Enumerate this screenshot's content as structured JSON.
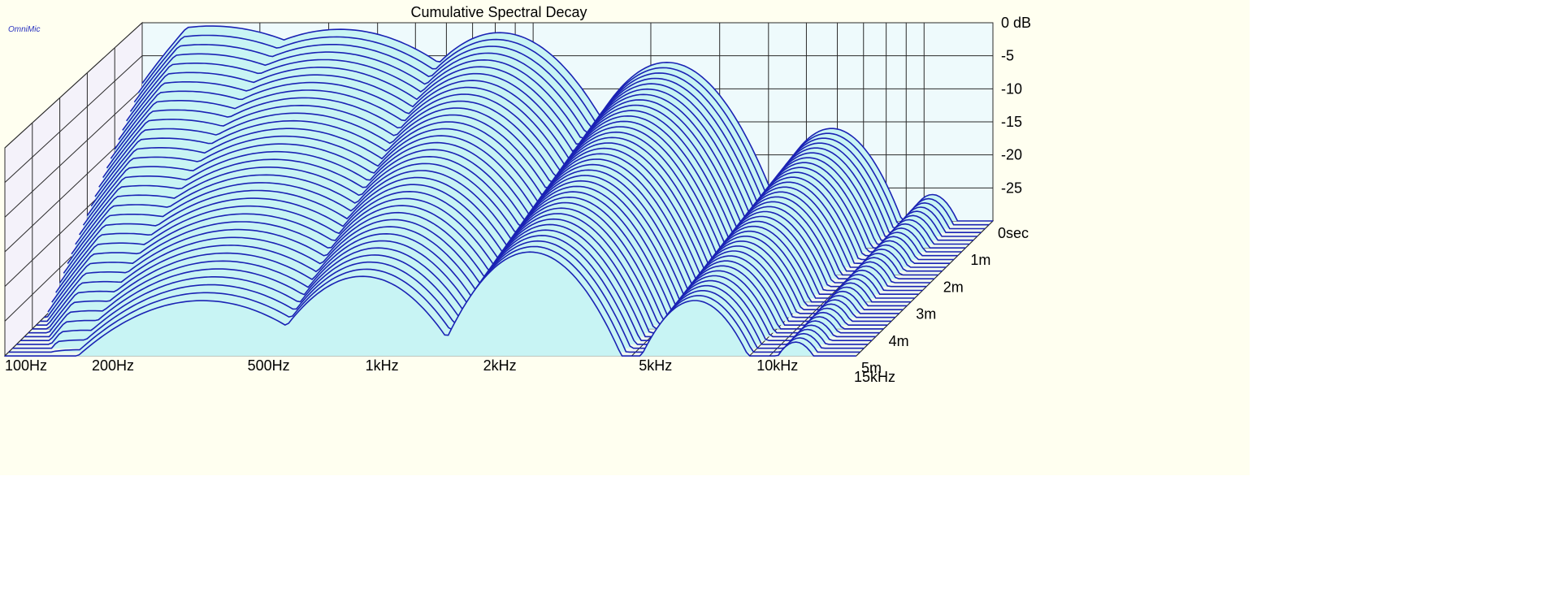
{
  "app_label": "OmniMic",
  "chart_data": {
    "type": "area",
    "subtype": "waterfall-3d",
    "title": "Cumulative Spectral Decay",
    "x_axis": {
      "scale": "log",
      "range": [
        100,
        15000
      ],
      "tick_labels": [
        {
          "value": 100,
          "label": "100Hz"
        },
        {
          "value": 200,
          "label": "200Hz"
        },
        {
          "value": 500,
          "label": "500Hz"
        },
        {
          "value": 1000,
          "label": "1kHz"
        },
        {
          "value": 2000,
          "label": "2kHz"
        },
        {
          "value": 5000,
          "label": "5kHz"
        },
        {
          "value": 10000,
          "label": "10kHz"
        },
        {
          "value": 15000,
          "label": "15kHz"
        }
      ]
    },
    "y_axis": {
      "unit": "dB",
      "range": [
        -30,
        0
      ],
      "tick_labels": [
        {
          "value": 0,
          "label": "0 dB"
        },
        {
          "value": -5,
          "label": "-5"
        },
        {
          "value": -10,
          "label": "-10"
        },
        {
          "value": -15,
          "label": "-15"
        },
        {
          "value": -20,
          "label": "-20"
        },
        {
          "value": -25,
          "label": "-25"
        }
      ]
    },
    "z_axis": {
      "unit": "sec",
      "range": [
        0,
        0.005
      ],
      "tick_labels": [
        {
          "value": 0,
          "label": "0sec"
        },
        {
          "value": 0.001,
          "label": "1m"
        },
        {
          "value": 0.002,
          "label": "2m"
        },
        {
          "value": 0.003,
          "label": "3m"
        },
        {
          "value": 0.004,
          "label": "4m"
        },
        {
          "value": 0.005,
          "label": "5m"
        }
      ]
    },
    "grid": true,
    "slice_count": 36,
    "slice_spacing_sec": 0.000143,
    "peaks": [
      {
        "freq": 150,
        "level_db": -0.5,
        "width_oct": 1.6
      },
      {
        "freq": 320,
        "level_db": -1.0,
        "width_oct": 1.4
      },
      {
        "freq": 820,
        "level_db": -1.5,
        "width_oct": 0.9
      },
      {
        "freq": 2200,
        "level_db": -6.0,
        "width_oct": 0.75
      },
      {
        "freq": 5800,
        "level_db": -16.0,
        "width_oct": 0.6
      },
      {
        "freq": 10500,
        "level_db": -26.0,
        "width_oct": 0.4
      }
    ],
    "decay_db_per_ms": [
      6,
      4.2,
      3.4,
      1.8,
      1.2,
      0.4
    ],
    "colors": {
      "fill": "#c8f4f4",
      "line": "#1a22b4",
      "grid": "#2a2a2a",
      "floor": "#eef8f0",
      "back_wall": "#eefafc",
      "left_wall": "#f4f2fa",
      "panel": "#fffff0"
    }
  }
}
